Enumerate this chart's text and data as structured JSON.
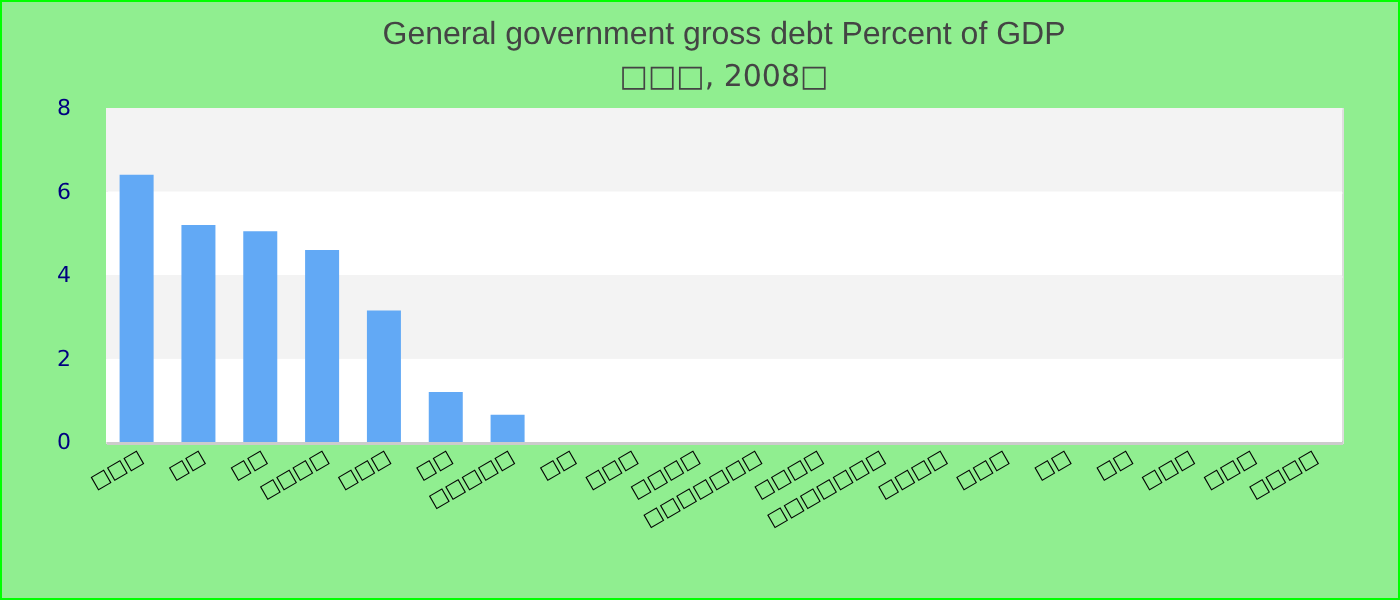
{
  "chart_data": {
    "type": "bar",
    "title": "General government gross debt  Percent of GDP",
    "subtitle": "□□□, 2008□",
    "categories": [
      "□□□",
      "□□",
      "□□",
      "□□□□",
      "□□□",
      "□□",
      "□□□□□",
      "□□",
      "□□□",
      "□□□□",
      "□□□□□□□",
      "□□□□",
      "□□□□□□□",
      "□□□□",
      "□□□",
      "□□",
      "□□",
      "□□□",
      "□□□",
      "□□□□"
    ],
    "values": [
      6.4,
      5.2,
      5.05,
      4.6,
      3.15,
      1.2,
      0.65,
      0,
      0,
      0,
      0,
      0,
      0,
      0,
      0,
      0,
      0,
      0,
      0,
      0
    ],
    "color": "#62a9f5",
    "ylim": [
      0,
      8
    ],
    "yticks": [
      0,
      2,
      4,
      6,
      8
    ],
    "grid": "y"
  }
}
